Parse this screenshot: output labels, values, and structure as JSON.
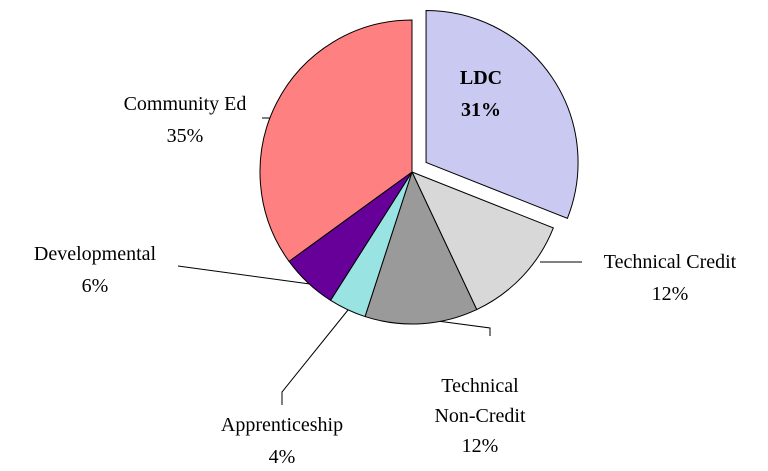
{
  "chart_data": {
    "type": "pie",
    "categories": [
      "LDC",
      "Technical Credit",
      "Technical Non-Credit",
      "Apprenticeship",
      "Developmental",
      "Community Ed"
    ],
    "values": [
      31,
      12,
      12,
      4,
      6,
      35
    ],
    "value_labels": [
      "31%",
      "12%",
      "12%",
      "4%",
      "6%",
      "35%"
    ],
    "colors": [
      "#c9c9f2",
      "#d8d8d8",
      "#9a9a9a",
      "#99e3e3",
      "#660099",
      "#ff8080"
    ],
    "exploded": [
      0
    ]
  }
}
